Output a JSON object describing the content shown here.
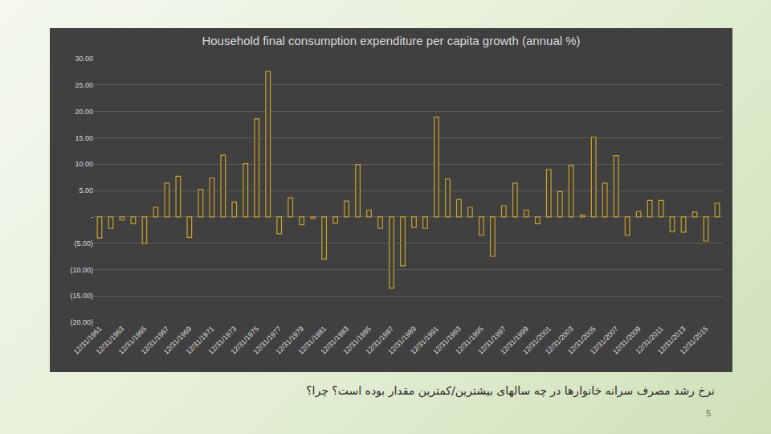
{
  "chart_data": {
    "type": "bar",
    "title": "Household final consumption expenditure per capita growth (annual %)",
    "categories": [
      "12/31/1961",
      null,
      "12/31/1963",
      null,
      "12/31/1965",
      null,
      "12/31/1967",
      null,
      "12/31/1969",
      null,
      "12/31/1971",
      null,
      "12/31/1973",
      null,
      "12/31/1975",
      null,
      "12/31/1977",
      null,
      "12/31/1979",
      null,
      "12/31/1981",
      null,
      "12/31/1983",
      null,
      "12/31/1985",
      null,
      "12/31/1987",
      null,
      "12/31/1989",
      null,
      "12/31/1991",
      null,
      "12/31/1993",
      null,
      "12/31/1995",
      null,
      "12/31/1997",
      null,
      "12/31/1999",
      null,
      "12/31/2001",
      null,
      "12/31/2003",
      null,
      "12/31/2005",
      null,
      "12/31/2007",
      null,
      "12/31/2009",
      null,
      "12/31/2011",
      null,
      "12/31/2013",
      null,
      "12/31/2015",
      null
    ],
    "values": [
      -4.0,
      -2.2,
      -0.6,
      -1.3,
      -5.0,
      1.8,
      6.4,
      7.7,
      -3.9,
      5.2,
      7.4,
      11.7,
      2.8,
      10.1,
      18.6,
      27.6,
      -3.2,
      3.6,
      -1.5,
      -0.3,
      -8.0,
      -1.2,
      3.0,
      9.9,
      1.3,
      -2.2,
      -13.5,
      -9.3,
      -2.0,
      -2.2,
      18.9,
      7.2,
      3.3,
      1.8,
      -3.5,
      -7.5,
      2.1,
      6.4,
      1.3,
      -1.3,
      9.0,
      4.8,
      9.7,
      0.3,
      15.1,
      6.4,
      11.6,
      -3.5,
      1.0,
      3.1,
      3.1,
      -2.8,
      -2.9,
      0.9,
      -4.6,
      2.6
    ],
    "color": "#c9a227",
    "ylim": [
      -20,
      30
    ],
    "yticks": [
      {
        "value": -20,
        "label": "(20.00)"
      },
      {
        "value": -15,
        "label": "(15.00)"
      },
      {
        "value": -10,
        "label": "(10.00)"
      },
      {
        "value": -5,
        "label": "(5.00)"
      },
      {
        "value": 0,
        "label": "-"
      },
      {
        "value": 5,
        "label": "5.00"
      },
      {
        "value": 10,
        "label": "10.00"
      },
      {
        "value": 15,
        "label": "15.00"
      },
      {
        "value": 20,
        "label": "20.00"
      },
      {
        "value": 25,
        "label": "25.00"
      },
      {
        "value": 30,
        "label": "30.00"
      }
    ],
    "grid": true
  },
  "slide": {
    "question": "نرخ رشد مصرف سرانه خانوارها در چه سالهای بیشترین/کمترین مقدار بوده است؟ چرا؟",
    "page_number": "5"
  }
}
